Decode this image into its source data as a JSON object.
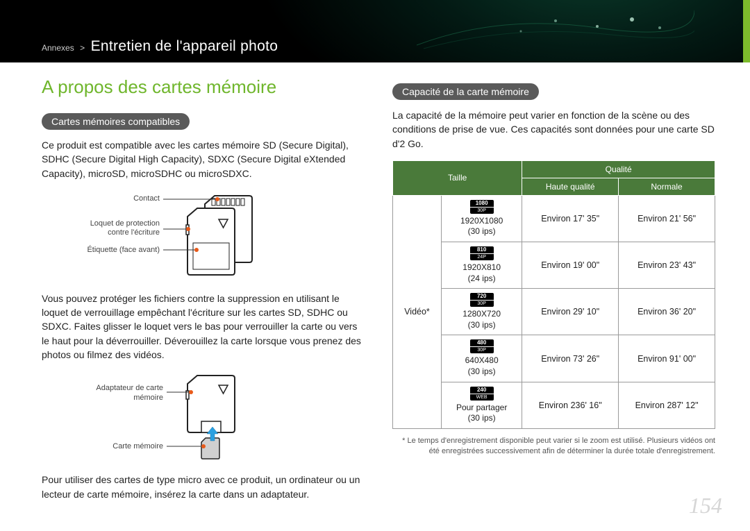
{
  "breadcrumb": {
    "parent": "Annexes",
    "sep": ">",
    "current": "Entretien de l'appareil photo"
  },
  "title": "A propos des cartes mémoire",
  "left": {
    "pill": "Cartes mémoires compatibles",
    "intro": "Ce produit est compatible avec les cartes mémoire SD (Secure Digital), SDHC (Secure Digital High Capacity), SDXC (Secure Digital eXtended Capacity), microSD, microSDHC ou microSDXC.",
    "sd_labels": {
      "contact": "Contact",
      "lock": "Loquet de protection contre l'écriture",
      "label": "Étiquette (face avant)"
    },
    "lock_text": "Vous pouvez protéger les fichiers contre la suppression en utilisant le loquet de verrouillage empêchant l'écriture sur les cartes SD, SDHC ou SDXC. Faites glisser le loquet vers le bas pour verrouiller la carte ou vers le haut pour la déverrouiller. Déverouillez la carte lorsque vous prenez des photos ou filmez des vidéos.",
    "adapter_labels": {
      "adapter": "Adaptateur de carte mémoire",
      "card": "Carte mémoire"
    },
    "micro_text": "Pour utiliser des cartes de type micro avec ce produit, un ordinateur ou un lecteur de carte mémoire, insérez la carte dans un adaptateur."
  },
  "right": {
    "pill": "Capacité de la carte mémoire",
    "intro": "La capacité de la mémoire peut varier en fonction de la scène ou des conditions de prise de vue. Ces capacités sont données pour une carte SD d'2 Go.",
    "table": {
      "head": {
        "taille": "Taille",
        "qualite": "Qualité",
        "hq": "Haute qualité",
        "normale": "Normale"
      },
      "rowgroup": "Vidéo*",
      "rows": [
        {
          "icon_top": "1080",
          "icon_bot": "30P",
          "res": "1920X1080",
          "fps": "(30 ips)",
          "hq": "Environ 17' 35\"",
          "nm": "Environ 21' 56\""
        },
        {
          "icon_top": "810",
          "icon_bot": "24P",
          "res": "1920X810",
          "fps": "(24 ips)",
          "hq": "Environ 19' 00\"",
          "nm": "Environ 23' 43\""
        },
        {
          "icon_top": "720",
          "icon_bot": "30P",
          "res": "1280X720",
          "fps": "(30 ips)",
          "hq": "Environ 29' 10\"",
          "nm": "Environ 36' 20\""
        },
        {
          "icon_top": "480",
          "icon_bot": "30P",
          "res": "640X480",
          "fps": "(30 ips)",
          "hq": "Environ 73' 26\"",
          "nm": "Environ 91' 00\""
        },
        {
          "icon_top": "240",
          "icon_bot": "WEB",
          "res": "Pour partager",
          "fps": "(30 ips)",
          "hq": "Environ 236' 16\"",
          "nm": "Environ 287' 12\""
        }
      ]
    },
    "footnote": "* Le temps d'enregistrement disponible peut varier si le zoom est utilisé. Plusieurs vidéos ont été enregistrées successivement afin de déterminer la durée totale d'enregistrement."
  },
  "page_number": "154",
  "colors": {
    "accent_green": "#6fb62c",
    "pill_bg": "#5a5a5a",
    "table_head": "#4a7a3a",
    "dot": "#e85a1a",
    "arrow": "#2aa0e0"
  }
}
